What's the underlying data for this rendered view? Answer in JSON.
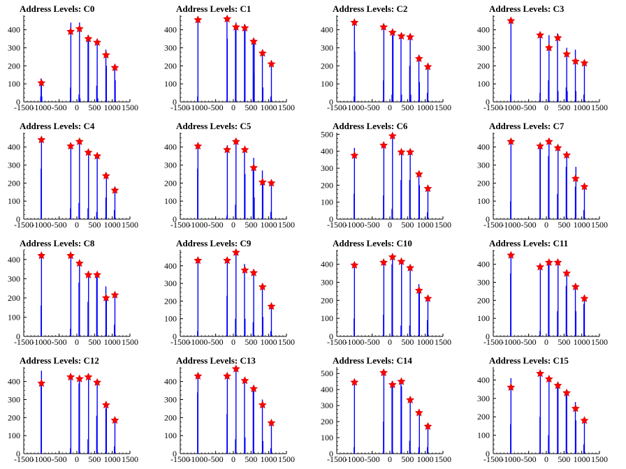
{
  "colors": {
    "bars": "#0000ff",
    "markers": "#ff0000",
    "marker_outline": "#cc0000",
    "axes": "#000000"
  },
  "chart_data": [
    {
      "type": "bar",
      "title": "Address Levels: C0",
      "xlabel": "",
      "ylabel": "",
      "xlim": [
        -1500,
        1500
      ],
      "ylim": [
        0,
        480
      ],
      "yticks": [
        0,
        100,
        200,
        300,
        400
      ],
      "xticks": [
        -1500,
        -1000,
        -500,
        0,
        500,
        1000,
        1500
      ],
      "stars": {
        "x": [
          -1000,
          -175,
          75,
          325,
          575,
          825,
          1075
        ],
        "y": [
          105,
          390,
          405,
          350,
          330,
          260,
          190
        ]
      },
      "bars": {
        "x": [
          -1020,
          -1010,
          -1000,
          -990,
          -180,
          -170,
          60,
          75,
          90,
          315,
          330,
          560,
          575,
          590,
          820,
          835,
          1070,
          1085
        ],
        "y": [
          30,
          130,
          120,
          30,
          80,
          440,
          40,
          440,
          20,
          370,
          340,
          90,
          350,
          20,
          290,
          200,
          200,
          120
        ]
      }
    },
    {
      "type": "bar",
      "title": "Address Levels: C1",
      "xlabel": "",
      "ylabel": "",
      "xlim": [
        -1500,
        1500
      ],
      "ylim": [
        0,
        480
      ],
      "yticks": [
        0,
        100,
        200,
        300,
        400
      ],
      "xticks": [
        -1500,
        -1000,
        -500,
        0,
        500,
        1000,
        1500
      ],
      "stars": {
        "x": [
          -1000,
          -175,
          75,
          325,
          575,
          825,
          1075
        ],
        "y": [
          455,
          460,
          415,
          410,
          335,
          270,
          210
        ]
      },
      "bars": {
        "x": [
          -1010,
          -1000,
          -180,
          -170,
          60,
          75,
          315,
          330,
          560,
          575,
          590,
          820,
          835,
          1060,
          1075
        ],
        "y": [
          30,
          460,
          460,
          350,
          400,
          440,
          430,
          400,
          350,
          160,
          340,
          290,
          80,
          30,
          230
        ]
      }
    },
    {
      "type": "bar",
      "title": "Address Levels: C2",
      "xlabel": "",
      "ylabel": "",
      "xlim": [
        -1500,
        1500
      ],
      "ylim": [
        0,
        480
      ],
      "yticks": [
        0,
        100,
        200,
        300,
        400
      ],
      "xticks": [
        -1500,
        -1000,
        -500,
        0,
        500,
        1000,
        1500
      ],
      "stars": {
        "x": [
          -1000,
          -175,
          75,
          325,
          575,
          825,
          1075
        ],
        "y": [
          440,
          415,
          385,
          365,
          360,
          240,
          195
        ]
      },
      "bars": {
        "x": [
          -1010,
          -1000,
          -990,
          -180,
          -170,
          60,
          75,
          90,
          315,
          330,
          560,
          575,
          590,
          820,
          835,
          1060,
          1075
        ],
        "y": [
          30,
          440,
          280,
          120,
          420,
          40,
          370,
          400,
          360,
          40,
          200,
          360,
          40,
          260,
          110,
          50,
          190
        ]
      }
    },
    {
      "type": "bar",
      "title": "Address Levels: C3",
      "xlabel": "",
      "ylabel": "",
      "xlim": [
        -1500,
        1500
      ],
      "ylim": [
        0,
        480
      ],
      "yticks": [
        0,
        100,
        200,
        300,
        400
      ],
      "xticks": [
        -1500,
        -1000,
        -500,
        0,
        500,
        1000,
        1500
      ],
      "stars": {
        "x": [
          -1000,
          -175,
          75,
          325,
          575,
          825,
          1075
        ],
        "y": [
          450,
          370,
          300,
          355,
          265,
          225,
          215
        ]
      },
      "bars": {
        "x": [
          -1010,
          -1000,
          -180,
          -170,
          60,
          75,
          315,
          330,
          560,
          575,
          590,
          820,
          835,
          1060,
          1075
        ],
        "y": [
          40,
          450,
          50,
          360,
          120,
          370,
          380,
          60,
          80,
          300,
          60,
          290,
          60,
          40,
          220
        ]
      }
    },
    {
      "type": "bar",
      "title": "Address Levels: C4",
      "xlabel": "",
      "ylabel": "",
      "xlim": [
        -1500,
        1500
      ],
      "ylim": [
        0,
        480
      ],
      "yticks": [
        0,
        100,
        200,
        300,
        400
      ],
      "xticks": [
        -1500,
        -1000,
        -500,
        0,
        500,
        1000,
        1500
      ],
      "stars": {
        "x": [
          -1000,
          -175,
          75,
          325,
          575,
          825,
          1075
        ],
        "y": [
          440,
          405,
          430,
          370,
          350,
          240,
          160
        ]
      },
      "bars": {
        "x": [
          -1010,
          -1000,
          -180,
          -170,
          60,
          75,
          315,
          330,
          560,
          575,
          820,
          835,
          1060,
          1075
        ],
        "y": [
          280,
          440,
          60,
          410,
          90,
          430,
          60,
          380,
          40,
          360,
          120,
          240,
          50,
          170
        ]
      }
    },
    {
      "type": "bar",
      "title": "Address Levels: C5",
      "xlabel": "",
      "ylabel": "",
      "xlim": [
        -1500,
        1500
      ],
      "ylim": [
        0,
        480
      ],
      "yticks": [
        0,
        100,
        200,
        300,
        400
      ],
      "xticks": [
        -1500,
        -1000,
        -500,
        0,
        500,
        1000,
        1500
      ],
      "stars": {
        "x": [
          -1000,
          -175,
          75,
          325,
          575,
          825,
          1075
        ],
        "y": [
          405,
          385,
          430,
          385,
          285,
          205,
          200
        ]
      },
      "bars": {
        "x": [
          -1010,
          -1000,
          -180,
          -170,
          60,
          75,
          315,
          330,
          560,
          575,
          590,
          820,
          835,
          1060,
          1075
        ],
        "y": [
          280,
          410,
          20,
          410,
          80,
          430,
          390,
          250,
          290,
          340,
          120,
          270,
          200,
          40,
          200
        ]
      }
    },
    {
      "type": "bar",
      "title": "Address Levels: C6",
      "xlabel": "",
      "ylabel": "",
      "xlim": [
        -1500,
        1500
      ],
      "ylim": [
        0,
        510
      ],
      "yticks": [
        0,
        100,
        200,
        300,
        400,
        500
      ],
      "xticks": [
        -1500,
        -1000,
        -500,
        0,
        500,
        1000,
        1500
      ],
      "stars": {
        "x": [
          -1000,
          -175,
          75,
          325,
          575,
          825,
          1075
        ],
        "y": [
          375,
          435,
          490,
          395,
          395,
          265,
          180
        ]
      },
      "bars": {
        "x": [
          -1010,
          -1000,
          -180,
          -170,
          60,
          75,
          315,
          330,
          560,
          575,
          820,
          835,
          1060,
          1075
        ],
        "y": [
          150,
          420,
          140,
          450,
          60,
          500,
          230,
          400,
          230,
          390,
          270,
          200,
          40,
          180
        ]
      }
    },
    {
      "type": "bar",
      "title": "Address Levels: C7",
      "xlabel": "",
      "ylabel": "",
      "xlim": [
        -1500,
        1500
      ],
      "ylim": [
        0,
        480
      ],
      "yticks": [
        0,
        100,
        200,
        300,
        400
      ],
      "xticks": [
        -1500,
        -1000,
        -500,
        0,
        500,
        1000,
        1500
      ],
      "stars": {
        "x": [
          -1000,
          -175,
          75,
          325,
          575,
          825,
          1075
        ],
        "y": [
          430,
          405,
          430,
          395,
          355,
          225,
          180
        ]
      },
      "bars": {
        "x": [
          -1010,
          -1000,
          -180,
          -170,
          60,
          75,
          315,
          330,
          560,
          575,
          820,
          835,
          1060,
          1075
        ],
        "y": [
          100,
          430,
          410,
          420,
          350,
          440,
          140,
          400,
          290,
          360,
          180,
          290,
          50,
          180
        ]
      }
    },
    {
      "type": "bar",
      "title": "Address Levels: C8",
      "xlabel": "",
      "ylabel": "",
      "xlim": [
        -1500,
        1500
      ],
      "ylim": [
        0,
        450
      ],
      "yticks": [
        0,
        100,
        200,
        300,
        400
      ],
      "xticks": [
        -1500,
        -1000,
        -500,
        0,
        500,
        1000,
        1500
      ],
      "stars": {
        "x": [
          -1000,
          -175,
          75,
          325,
          575,
          825,
          1075
        ],
        "y": [
          420,
          420,
          380,
          320,
          320,
          200,
          215
        ]
      },
      "bars": {
        "x": [
          -1010,
          -1000,
          -180,
          -170,
          60,
          75,
          315,
          330,
          560,
          575,
          820,
          835,
          1060,
          1075
        ],
        "y": [
          160,
          420,
          40,
          420,
          280,
          380,
          180,
          340,
          330,
          320,
          260,
          200,
          60,
          220
        ]
      }
    },
    {
      "type": "bar",
      "title": "Address Levels: C9",
      "xlabel": "",
      "ylabel": "",
      "xlim": [
        -1500,
        1500
      ],
      "ylim": [
        0,
        490
      ],
      "yticks": [
        0,
        100,
        200,
        300,
        400
      ],
      "xticks": [
        -1500,
        -1000,
        -500,
        0,
        500,
        1000,
        1500
      ],
      "stars": {
        "x": [
          -1000,
          -175,
          75,
          325,
          575,
          825,
          1075
        ],
        "y": [
          430,
          430,
          475,
          375,
          360,
          280,
          170
        ]
      },
      "bars": {
        "x": [
          -1010,
          -1000,
          -180,
          -170,
          60,
          75,
          315,
          330,
          560,
          575,
          820,
          835,
          1060,
          1075
        ],
        "y": [
          30,
          430,
          230,
          430,
          100,
          480,
          410,
          100,
          80,
          360,
          300,
          110,
          30,
          170
        ]
      }
    },
    {
      "type": "bar",
      "title": "Address Levels: C10",
      "xlabel": "",
      "ylabel": "",
      "xlim": [
        -1500,
        1500
      ],
      "ylim": [
        0,
        480
      ],
      "yticks": [
        0,
        100,
        200,
        300,
        400
      ],
      "xticks": [
        -1500,
        -1000,
        -500,
        0,
        500,
        1000,
        1500
      ],
      "stars": {
        "x": [
          -1000,
          -175,
          75,
          325,
          575,
          825,
          1075
        ],
        "y": [
          395,
          410,
          440,
          415,
          380,
          255,
          210
        ]
      },
      "bars": {
        "x": [
          -1010,
          -1000,
          -180,
          -170,
          60,
          75,
          315,
          330,
          560,
          575,
          820,
          835,
          1060,
          1075
        ],
        "y": [
          100,
          400,
          120,
          420,
          400,
          440,
          60,
          420,
          60,
          380,
          290,
          250,
          90,
          210
        ]
      }
    },
    {
      "type": "bar",
      "title": "Address Levels: C11",
      "xlabel": "",
      "ylabel": "",
      "xlim": [
        -1500,
        1500
      ],
      "ylim": [
        0,
        480
      ],
      "yticks": [
        0,
        100,
        200,
        300,
        400
      ],
      "xticks": [
        -1500,
        -1000,
        -500,
        0,
        500,
        1000,
        1500
      ],
      "stars": {
        "x": [
          -1000,
          -175,
          75,
          325,
          575,
          825,
          1075
        ],
        "y": [
          450,
          385,
          410,
          410,
          350,
          275,
          210
        ]
      },
      "bars": {
        "x": [
          -1010,
          -1000,
          -180,
          -170,
          60,
          75,
          315,
          330,
          560,
          575,
          820,
          835,
          1060,
          1075
        ],
        "y": [
          350,
          450,
          30,
          390,
          400,
          410,
          140,
          420,
          280,
          370,
          280,
          140,
          180,
          220
        ]
      }
    },
    {
      "type": "bar",
      "title": "Address Levels: C12",
      "xlabel": "",
      "ylabel": "",
      "xlim": [
        -1500,
        1500
      ],
      "ylim": [
        0,
        480
      ],
      "yticks": [
        0,
        100,
        200,
        300,
        400
      ],
      "xticks": [
        -1500,
        -1000,
        -500,
        0,
        500,
        1000,
        1500
      ],
      "stars": {
        "x": [
          -1000,
          -175,
          75,
          325,
          575,
          825,
          1075
        ],
        "y": [
          390,
          425,
          415,
          425,
          395,
          270,
          185
        ]
      },
      "bars": {
        "x": [
          -1010,
          -1000,
          -180,
          -170,
          60,
          75,
          315,
          330,
          560,
          575,
          820,
          835,
          1060,
          1075
        ],
        "y": [
          400,
          460,
          30,
          430,
          390,
          420,
          80,
          430,
          210,
          400,
          250,
          270,
          40,
          190
        ]
      }
    },
    {
      "type": "bar",
      "title": "Address Levels: C13",
      "xlabel": "",
      "ylabel": "",
      "xlim": [
        -1500,
        1500
      ],
      "ylim": [
        0,
        480
      ],
      "yticks": [
        0,
        100,
        200,
        300,
        400
      ],
      "xticks": [
        -1500,
        -1000,
        -500,
        0,
        500,
        1000,
        1500
      ],
      "stars": {
        "x": [
          -1000,
          -175,
          75,
          325,
          575,
          825,
          1075
        ],
        "y": [
          430,
          430,
          470,
          405,
          360,
          270,
          170
        ]
      },
      "bars": {
        "x": [
          -1010,
          -1000,
          -180,
          -170,
          60,
          75,
          315,
          330,
          560,
          575,
          820,
          835,
          1060,
          1075
        ],
        "y": [
          340,
          430,
          220,
          430,
          80,
          470,
          410,
          90,
          350,
          360,
          300,
          70,
          30,
          170
        ]
      }
    },
    {
      "type": "bar",
      "title": "Address Levels: C14",
      "xlabel": "",
      "ylabel": "",
      "xlim": [
        -1500,
        1500
      ],
      "ylim": [
        0,
        540
      ],
      "yticks": [
        0,
        100,
        200,
        300,
        400,
        500
      ],
      "xticks": [
        -1500,
        -1000,
        -500,
        0,
        500,
        1000,
        1500
      ],
      "stars": {
        "x": [
          -1000,
          -175,
          75,
          325,
          575,
          825,
          1075
        ],
        "y": [
          445,
          505,
          430,
          450,
          335,
          255,
          170
        ]
      },
      "bars": {
        "x": [
          -1010,
          -1000,
          -180,
          -170,
          60,
          75,
          315,
          330,
          560,
          575,
          820,
          835,
          1060,
          1075
        ],
        "y": [
          40,
          450,
          200,
          510,
          450,
          440,
          460,
          420,
          80,
          340,
          40,
          260,
          40,
          180
        ]
      }
    },
    {
      "type": "bar",
      "title": "Address Levels: C15",
      "xlabel": "",
      "ylabel": "",
      "xlim": [
        -1500,
        1500
      ],
      "ylim": [
        0,
        470
      ],
      "yticks": [
        0,
        100,
        200,
        300,
        400
      ],
      "xticks": [
        -1500,
        -1000,
        -500,
        0,
        500,
        1000,
        1500
      ],
      "stars": {
        "x": [
          -1000,
          -175,
          75,
          325,
          575,
          825,
          1075
        ],
        "y": [
          360,
          435,
          405,
          370,
          330,
          245,
          180
        ]
      },
      "bars": {
        "x": [
          -1010,
          -1000,
          -180,
          -170,
          60,
          75,
          315,
          330,
          560,
          575,
          820,
          835,
          1060,
          1075
        ],
        "y": [
          160,
          410,
          200,
          440,
          100,
          410,
          380,
          360,
          320,
          340,
          280,
          180,
          50,
          180
        ]
      }
    }
  ]
}
